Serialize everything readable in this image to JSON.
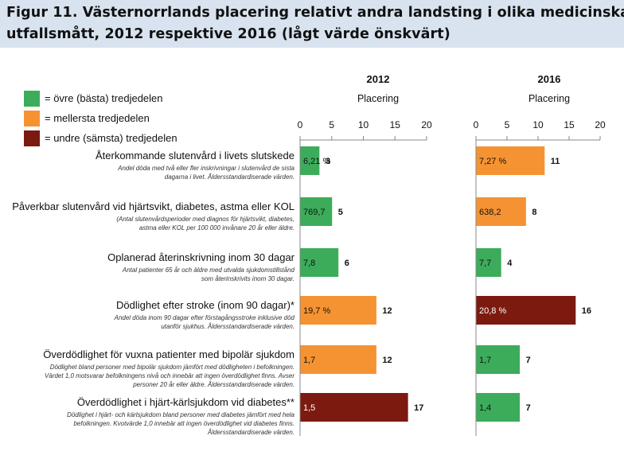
{
  "title_lines": [
    "Figur 11. Västernorrlands placering relativt andra landsting i olika medicinska",
    "utfallsmått, 2012 respektive 2016 (lågt värde önskvärt)"
  ],
  "colors": {
    "green": "#3cac5a",
    "orange": "#f59332",
    "darkred": "#7c1a0f",
    "title_bg": "#d8e3ef"
  },
  "legend": [
    {
      "label": "= övre (bästa) tredjedelen",
      "color_key": "green"
    },
    {
      "label": "= mellersta tredjedelen",
      "color_key": "orange"
    },
    {
      "label": "= undre (sämsta) tredjedelen",
      "color_key": "darkred"
    }
  ],
  "chart_data": {
    "type": "bar",
    "orientation": "horizontal",
    "panels": [
      {
        "year": "2012",
        "subtitle": "Placering"
      },
      {
        "year": "2016",
        "subtitle": "Placering"
      }
    ],
    "xlim": [
      0,
      20
    ],
    "ticks": [
      "0",
      "5",
      "10",
      "15",
      "20"
    ],
    "grid": false,
    "categories": [
      {
        "title": "Återkommande slutenvård i livets slutskede",
        "desc": [
          "Andel döda med två eller fler inskrivningar i slutenvård de sista",
          "dagarna i livet. Åldersstandardiserade värden."
        ]
      },
      {
        "title": "Påverkbar slutenvård vid hjärtsvikt, diabetes, astma eller KOL",
        "desc": [
          "(Antal slutenvårdsperioder med diagnos för hjärtsvikt, diabetes,",
          "astma eller KOL per 100 000 invånare 20 år eller äldre."
        ]
      },
      {
        "title": "Oplanerad återinskrivning inom 30 dagar",
        "desc": [
          "Antal patienter 65 år och äldre med utvalda sjukdomstillstånd",
          "som återinskrivits inom 30 dagar."
        ]
      },
      {
        "title": "Dödlighet efter stroke (inom 90 dagar)*",
        "desc": [
          "Andel döda inom 90 dagar efter förstagångsstroke inklusive död",
          "utanför sjukhus. Åldersstandardiserade värden."
        ]
      },
      {
        "title": "Överdödlighet för vuxna patienter med bipolär sjukdom",
        "desc": [
          "Dödlighet bland personer med bipolär sjukdom jämfört med dödligheten i befolkningen.",
          "Värdet 1,0 motsvarar befolkningens nivå och innebär att ingen överdödlighet finns. Avser",
          "personer 20 år eller äldre. Åldersstandardiserade värden."
        ]
      },
      {
        "title": "Överdödlighet i hjärt-kärlsjukdom vid diabetes**",
        "desc": [
          "Dödlighet i hjärt- och kärlsjukdom bland personer med diabetes jämfört med hela",
          "befolkningen. Kvotvärde 1,0 innebär att ingen överdödlighet vid diabetes finns.",
          "Åldersstandardiserade värden."
        ]
      }
    ],
    "series": [
      {
        "name": "2012",
        "values": [
          3,
          5,
          6,
          12,
          12,
          17
        ],
        "labels": [
          "6,21 %",
          "769,7",
          "7,8",
          "19,7 %",
          "1,7",
          "1,5"
        ],
        "color_keys": [
          "green",
          "green",
          "green",
          "orange",
          "orange",
          "darkred"
        ]
      },
      {
        "name": "2016",
        "values": [
          11,
          8,
          4,
          16,
          7,
          7
        ],
        "labels": [
          "7,27 %",
          "638,2",
          "7,7",
          "20,8 %",
          "1,7",
          "1,4"
        ],
        "color_keys": [
          "orange",
          "orange",
          "green",
          "darkred",
          "green",
          "green"
        ]
      }
    ]
  }
}
